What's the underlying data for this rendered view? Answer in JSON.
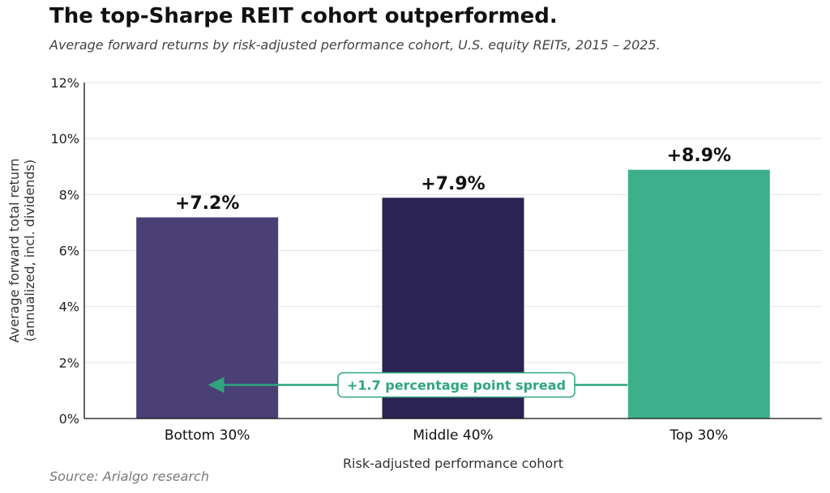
{
  "title": "The top-Sharpe REIT cohort outperformed.",
  "subtitle": "Average forward returns by risk-adjusted performance cohort, U.S. equity REITs, 2015 – 2025.",
  "source": "Source: Arialgo research",
  "colors": {
    "bottom": "#4a4076",
    "middle": "#2b2353",
    "top": "#3daf8b",
    "accent": "#2fa57f",
    "grid": "#e4e4e4",
    "axis": "#111111"
  },
  "chart_data": {
    "type": "bar",
    "categories": [
      "Bottom 30%",
      "Middle 40%",
      "Top 30%"
    ],
    "values": [
      7.2,
      7.9,
      8.9
    ],
    "value_labels": [
      "+7.2%",
      "+7.9%",
      "+8.9%"
    ],
    "xlabel": "Risk-adjusted performance cohort",
    "ylabel_lines": [
      "Average forward total return",
      "(annualized, incl. dividends)"
    ],
    "ylim": [
      0,
      12
    ],
    "yticks": [
      0,
      2,
      4,
      6,
      8,
      10,
      12
    ],
    "ytick_labels": [
      "0%",
      "2%",
      "4%",
      "6%",
      "8%",
      "10%",
      "12%"
    ],
    "grid": true,
    "annotation": {
      "text": "+1.7 percentage point spread",
      "spread_value": 1.7,
      "y_value": 1.2
    }
  }
}
